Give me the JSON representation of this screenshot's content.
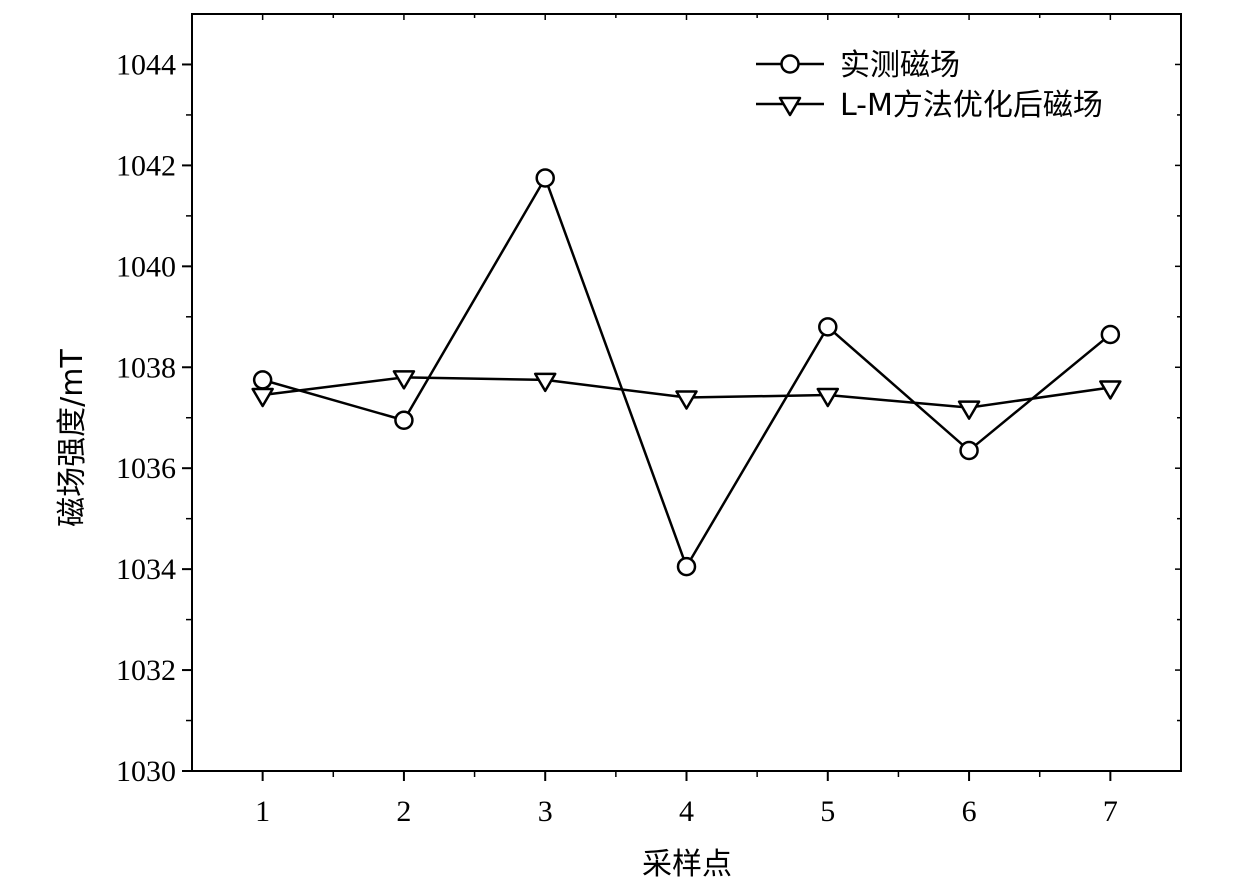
{
  "chart_data": {
    "type": "line",
    "title": "",
    "xlabel": "采样点",
    "ylabel": "磁场强度/mT",
    "x": [
      1,
      2,
      3,
      4,
      5,
      6,
      7
    ],
    "xlim": [
      0.5,
      7.5
    ],
    "ylim": [
      1030,
      1045
    ],
    "xticks": [
      1,
      2,
      3,
      4,
      5,
      6,
      7
    ],
    "xtick_labels": [
      "1",
      "2",
      "3",
      "4",
      "5",
      "6",
      "7"
    ],
    "yticks": [
      1030,
      1032,
      1034,
      1036,
      1038,
      1040,
      1042,
      1044
    ],
    "ytick_labels": [
      "1030",
      "1032",
      "1034",
      "1036",
      "1038",
      "1040",
      "1042",
      "1044"
    ],
    "grid": false,
    "legend_position": "top-right",
    "series": [
      {
        "name": "实测磁场",
        "marker": "circle",
        "color": "#000000",
        "values": [
          1037.75,
          1036.95,
          1041.75,
          1034.05,
          1038.8,
          1036.35,
          1038.65
        ]
      },
      {
        "name": "L-M方法优化后磁场",
        "marker": "triangle-down",
        "color": "#000000",
        "values": [
          1037.45,
          1037.8,
          1037.75,
          1037.4,
          1037.45,
          1037.2,
          1037.6
        ]
      }
    ]
  }
}
